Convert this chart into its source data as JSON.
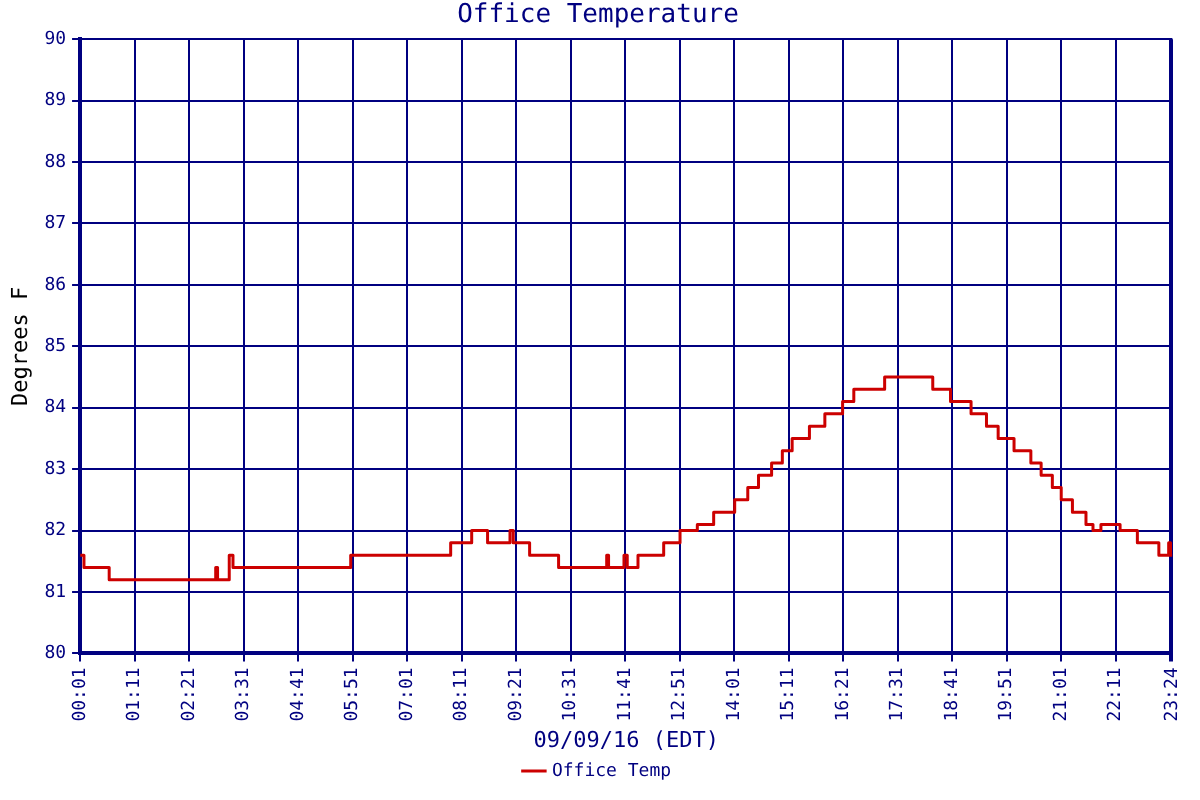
{
  "chart_data": {
    "type": "step",
    "title": "Office Temperature",
    "xlabel": "09/09/16 (EDT)",
    "ylabel": "Degrees F",
    "xlim": [
      0.0167,
      23.4
    ],
    "xticks": [
      {
        "value": 0.0167,
        "label": "00:01"
      },
      {
        "value": 1.1833,
        "label": "01:11"
      },
      {
        "value": 2.35,
        "label": "02:21"
      },
      {
        "value": 3.5167,
        "label": "03:31"
      },
      {
        "value": 4.6833,
        "label": "04:41"
      },
      {
        "value": 5.85,
        "label": "05:51"
      },
      {
        "value": 7.0167,
        "label": "07:01"
      },
      {
        "value": 8.1833,
        "label": "08:11"
      },
      {
        "value": 9.35,
        "label": "09:21"
      },
      {
        "value": 10.5167,
        "label": "10:31"
      },
      {
        "value": 11.6833,
        "label": "11:41"
      },
      {
        "value": 12.85,
        "label": "12:51"
      },
      {
        "value": 14.0167,
        "label": "14:01"
      },
      {
        "value": 15.1833,
        "label": "15:11"
      },
      {
        "value": 16.35,
        "label": "16:21"
      },
      {
        "value": 17.5167,
        "label": "17:31"
      },
      {
        "value": 18.6833,
        "label": "18:41"
      },
      {
        "value": 19.85,
        "label": "19:51"
      },
      {
        "value": 21.0167,
        "label": "21:01"
      },
      {
        "value": 22.1833,
        "label": "22:11"
      },
      {
        "value": 23.35,
        "label": null
      },
      {
        "value": 23.4,
        "label": "23:24"
      }
    ],
    "ylim": [
      80,
      90
    ],
    "yticks": [
      80,
      81,
      82,
      83,
      84,
      85,
      86,
      87,
      88,
      89,
      90
    ],
    "grid": true,
    "legend": "bottom",
    "marker": "none",
    "line_style": "solid",
    "series": [
      {
        "name": "Office Temp",
        "color": "#cc0000",
        "x": [
          0.02,
          0.1,
          0.64,
          2.92,
          2.96,
          3.21,
          3.29,
          5.81,
          7.95,
          8.4,
          8.74,
          9.22,
          9.29,
          9.64,
          10.26,
          11.29,
          11.33,
          11.66,
          11.73,
          11.96,
          12.51,
          12.86,
          13.23,
          13.58,
          14.03,
          14.31,
          14.54,
          14.82,
          15.05,
          15.26,
          15.63,
          15.96,
          16.34,
          16.58,
          17.24,
          18.27,
          18.65,
          19.09,
          19.42,
          19.67,
          20.01,
          20.37,
          20.59,
          20.83,
          21.02,
          21.26,
          21.55,
          21.7,
          21.87,
          22.28,
          22.65,
          23.11,
          23.32,
          23.36,
          23.4
        ],
        "values": [
          81.6,
          81.4,
          81.2,
          81.4,
          81.2,
          81.6,
          81.4,
          81.6,
          81.8,
          82.0,
          81.8,
          82.0,
          81.8,
          81.6,
          81.4,
          81.6,
          81.4,
          81.6,
          81.4,
          81.6,
          81.8,
          82.0,
          82.1,
          82.3,
          82.5,
          82.7,
          82.9,
          83.1,
          83.3,
          83.5,
          83.7,
          83.9,
          84.1,
          84.3,
          84.5,
          84.3,
          84.1,
          83.9,
          83.7,
          83.5,
          83.3,
          83.1,
          82.9,
          82.7,
          82.5,
          82.3,
          82.1,
          82.0,
          82.1,
          82.0,
          81.8,
          81.6,
          81.8,
          81.6,
          81.6
        ]
      }
    ]
  }
}
